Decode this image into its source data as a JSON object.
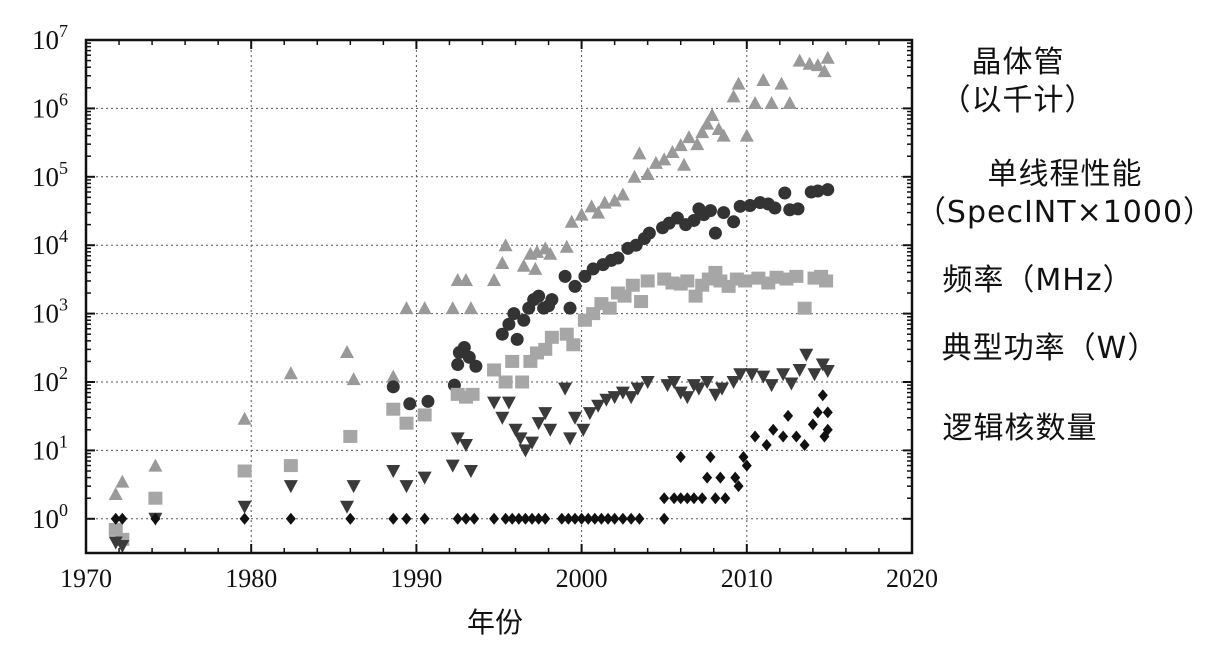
{
  "chart_data": {
    "type": "scatter",
    "title": "",
    "xlabel": "年份",
    "ylabel": "",
    "xlim": [
      1970,
      2020
    ],
    "ylim_log10": [
      -0.5,
      7
    ],
    "yscale": "log",
    "grid": true,
    "x_ticks": [
      "1970",
      "1980",
      "1990",
      "2000",
      "2010",
      "2020"
    ],
    "y_ticks": [
      {
        "base": "10",
        "exp": "0"
      },
      {
        "base": "10",
        "exp": "1"
      },
      {
        "base": "10",
        "exp": "2"
      },
      {
        "base": "10",
        "exp": "3"
      },
      {
        "base": "10",
        "exp": "4"
      },
      {
        "base": "10",
        "exp": "5"
      },
      {
        "base": "10",
        "exp": "6"
      },
      {
        "base": "10",
        "exp": "7"
      }
    ],
    "legend": [
      {
        "lines": [
          "晶体管",
          "（以千计）"
        ]
      },
      {
        "lines": [
          "单线程性能",
          "（SpecINT×1000）"
        ]
      },
      {
        "lines": [
          "频率（MHz）"
        ]
      },
      {
        "lines": [
          "典型功率（W）"
        ]
      },
      {
        "lines": [
          "逻辑核数量"
        ]
      }
    ],
    "series": [
      {
        "name": "晶体管（以千计）",
        "marker": "triangle-up",
        "color": "#999999",
        "points": [
          [
            1971.8,
            2.3
          ],
          [
            1972.2,
            3.5
          ],
          [
            1974.2,
            6
          ],
          [
            1979.6,
            29
          ],
          [
            1982.4,
            134
          ],
          [
            1985.8,
            275
          ],
          [
            1986.2,
            110
          ],
          [
            1988.6,
            120
          ],
          [
            1989.4,
            1200
          ],
          [
            1990.5,
            1200
          ],
          [
            1992.2,
            1200
          ],
          [
            1992.5,
            3100
          ],
          [
            1993,
            3100
          ],
          [
            1993.3,
            1200
          ],
          [
            1994.7,
            3100
          ],
          [
            1995.2,
            5500
          ],
          [
            1995.4,
            10000
          ],
          [
            1996.5,
            5000
          ],
          [
            1996.9,
            7500
          ],
          [
            1997.2,
            4500
          ],
          [
            1997.3,
            8000
          ],
          [
            1997.8,
            9000
          ],
          [
            1998.1,
            7500
          ],
          [
            1999.1,
            9500
          ],
          [
            1999.4,
            22000
          ],
          [
            2000,
            28000
          ],
          [
            2000.6,
            37000
          ],
          [
            2001,
            30000
          ],
          [
            2001.4,
            42000
          ],
          [
            2002,
            45000
          ],
          [
            2002.5,
            55000
          ],
          [
            2003.2,
            100000
          ],
          [
            2003.5,
            220000
          ],
          [
            2004,
            110000
          ],
          [
            2004.5,
            160000
          ],
          [
            2005,
            180000
          ],
          [
            2005.5,
            230000
          ],
          [
            2006,
            290000
          ],
          [
            2006.2,
            150000
          ],
          [
            2006.5,
            380000
          ],
          [
            2007,
            300000
          ],
          [
            2007.3,
            450000
          ],
          [
            2007.6,
            600000
          ],
          [
            2007.9,
            800000
          ],
          [
            2008.3,
            500000
          ],
          [
            2008.6,
            400000
          ],
          [
            2009.2,
            1500000
          ],
          [
            2009.5,
            2300000
          ],
          [
            2010,
            400000
          ],
          [
            2010.5,
            1200000
          ],
          [
            2011,
            2600000
          ],
          [
            2011.5,
            1200000
          ],
          [
            2012.1,
            2300000
          ],
          [
            2012.6,
            1200000
          ],
          [
            2013.2,
            5000000
          ],
          [
            2013.8,
            4500000
          ],
          [
            2014.3,
            4300000
          ],
          [
            2014.7,
            3500000
          ],
          [
            2014.9,
            5500000
          ]
        ]
      },
      {
        "name": "单线程性能（SpecINT×1000）",
        "marker": "circle",
        "color": "#333333",
        "points": [
          [
            1988.6,
            85
          ],
          [
            1989.6,
            48
          ],
          [
            1990.7,
            52
          ],
          [
            1992.3,
            90
          ],
          [
            1992.5,
            180
          ],
          [
            1992.6,
            270
          ],
          [
            1992.9,
            320
          ],
          [
            1993.2,
            230
          ],
          [
            1993.6,
            170
          ],
          [
            1995.2,
            500
          ],
          [
            1995.6,
            700
          ],
          [
            1995.9,
            1000
          ],
          [
            1996.1,
            420
          ],
          [
            1996.5,
            800
          ],
          [
            1996.8,
            1200
          ],
          [
            1997.1,
            1600
          ],
          [
            1997.4,
            1800
          ],
          [
            1997.7,
            1200
          ],
          [
            1998,
            1300
          ],
          [
            1998.2,
            1600
          ],
          [
            1999,
            3500
          ],
          [
            1999.3,
            1200
          ],
          [
            1999.6,
            2500
          ],
          [
            2000.2,
            3500
          ],
          [
            2000.7,
            4500
          ],
          [
            2001.3,
            5200
          ],
          [
            2001.8,
            6000
          ],
          [
            2002.2,
            6500
          ],
          [
            2002.8,
            9000
          ],
          [
            2003.3,
            10000
          ],
          [
            2003.8,
            12500
          ],
          [
            2004.1,
            15000
          ],
          [
            2004.9,
            18000
          ],
          [
            2005.3,
            21000
          ],
          [
            2005.8,
            25000
          ],
          [
            2006.3,
            20000
          ],
          [
            2006.8,
            23000
          ],
          [
            2007.1,
            34000
          ],
          [
            2007.4,
            28000
          ],
          [
            2007.8,
            32000
          ],
          [
            2008.1,
            15000
          ],
          [
            2008.6,
            30000
          ],
          [
            2009.2,
            22000
          ],
          [
            2009.6,
            37000
          ],
          [
            2010.2,
            38000
          ],
          [
            2010.8,
            42000
          ],
          [
            2011.3,
            40000
          ],
          [
            2011.7,
            35000
          ],
          [
            2012.3,
            58000
          ],
          [
            2012.6,
            33000
          ],
          [
            2013.1,
            34000
          ],
          [
            2013.9,
            60000
          ],
          [
            2014.3,
            62000
          ],
          [
            2014.9,
            65000
          ]
        ]
      },
      {
        "name": "频率（MHz）",
        "marker": "square",
        "color": "#a6a6a6",
        "points": [
          [
            1971.8,
            0.7
          ],
          [
            1972.2,
            0.5
          ],
          [
            1974.2,
            2
          ],
          [
            1979.6,
            5
          ],
          [
            1982.4,
            6
          ],
          [
            1986,
            16
          ],
          [
            1988.6,
            40
          ],
          [
            1989.4,
            25
          ],
          [
            1990.5,
            33
          ],
          [
            1992.5,
            66
          ],
          [
            1993,
            60
          ],
          [
            1993.4,
            66
          ],
          [
            1994.7,
            150
          ],
          [
            1995.4,
            100
          ],
          [
            1995.8,
            200
          ],
          [
            1996.4,
            100
          ],
          [
            1996.9,
            200
          ],
          [
            1997.3,
            266
          ],
          [
            1997.8,
            300
          ],
          [
            1998.2,
            450
          ],
          [
            1999.1,
            500
          ],
          [
            1999.5,
            350
          ],
          [
            2000.2,
            800
          ],
          [
            2000.7,
            1000
          ],
          [
            2001.2,
            1400
          ],
          [
            2001.7,
            1200
          ],
          [
            2002.2,
            2000
          ],
          [
            2002.6,
            1800
          ],
          [
            2003.1,
            2600
          ],
          [
            2003.6,
            1500
          ],
          [
            2004,
            3000
          ],
          [
            2005,
            3200
          ],
          [
            2005.5,
            2800
          ],
          [
            2006,
            2700
          ],
          [
            2006.4,
            3000
          ],
          [
            2006.9,
            1800
          ],
          [
            2007.3,
            2600
          ],
          [
            2007.7,
            3200
          ],
          [
            2008.1,
            4000
          ],
          [
            2008.4,
            3000
          ],
          [
            2008.9,
            2500
          ],
          [
            2009.4,
            3200
          ],
          [
            2009.9,
            3000
          ],
          [
            2010.7,
            3300
          ],
          [
            2011.3,
            2800
          ],
          [
            2011.8,
            3400
          ],
          [
            2012.4,
            3200
          ],
          [
            2013,
            3500
          ],
          [
            2013.5,
            1200
          ],
          [
            2014.1,
            3300
          ],
          [
            2014.5,
            3500
          ],
          [
            2014.8,
            3000
          ]
        ]
      },
      {
        "name": "典型功率（W）",
        "marker": "triangle-down",
        "color": "#3a3a3a",
        "points": [
          [
            1971.8,
            0.45
          ],
          [
            1972.2,
            0.4
          ],
          [
            1974.2,
            1
          ],
          [
            1979.6,
            1.5
          ],
          [
            1982.4,
            3
          ],
          [
            1985.8,
            1.5
          ],
          [
            1986.2,
            3
          ],
          [
            1988.6,
            5
          ],
          [
            1989.4,
            3
          ],
          [
            1990.5,
            4
          ],
          [
            1992.2,
            6
          ],
          [
            1992.5,
            15
          ],
          [
            1993,
            12
          ],
          [
            1993.3,
            5
          ],
          [
            1994.7,
            50
          ],
          [
            1995.2,
            30
          ],
          [
            1995.6,
            50
          ],
          [
            1996,
            20
          ],
          [
            1996.3,
            15
          ],
          [
            1996.6,
            10
          ],
          [
            1997,
            13
          ],
          [
            1997.4,
            25
          ],
          [
            1997.8,
            35
          ],
          [
            1998.1,
            20
          ],
          [
            1999,
            80
          ],
          [
            1999.3,
            15
          ],
          [
            1999.6,
            30
          ],
          [
            2000.1,
            20
          ],
          [
            2000.5,
            35
          ],
          [
            2001,
            45
          ],
          [
            2001.5,
            55
          ],
          [
            2002,
            60
          ],
          [
            2002.5,
            70
          ],
          [
            2003,
            60
          ],
          [
            2003.4,
            80
          ],
          [
            2004,
            100
          ],
          [
            2005.2,
            90
          ],
          [
            2005.6,
            100
          ],
          [
            2006,
            70
          ],
          [
            2006.4,
            60
          ],
          [
            2006.8,
            90
          ],
          [
            2007.1,
            80
          ],
          [
            2007.6,
            100
          ],
          [
            2008.1,
            65
          ],
          [
            2008.5,
            80
          ],
          [
            2009.2,
            100
          ],
          [
            2009.6,
            130
          ],
          [
            2010.3,
            130
          ],
          [
            2011,
            120
          ],
          [
            2011.5,
            90
          ],
          [
            2012.2,
            130
          ],
          [
            2012.7,
            95
          ],
          [
            2013.2,
            150
          ],
          [
            2013.6,
            250
          ],
          [
            2014.1,
            130
          ],
          [
            2014.6,
            180
          ],
          [
            2014.9,
            145
          ]
        ]
      },
      {
        "name": "逻辑核数量",
        "marker": "diamond",
        "color": "#111111",
        "points": [
          [
            1971.8,
            1
          ],
          [
            1972.2,
            1
          ],
          [
            1974.2,
            1
          ],
          [
            1979.6,
            1
          ],
          [
            1982.4,
            1
          ],
          [
            1986,
            1
          ],
          [
            1988.6,
            1
          ],
          [
            1989.4,
            1
          ],
          [
            1990.5,
            1
          ],
          [
            1992.5,
            1
          ],
          [
            1993,
            1
          ],
          [
            1993.5,
            1
          ],
          [
            1994.7,
            1
          ],
          [
            1995.4,
            1
          ],
          [
            1995.8,
            1
          ],
          [
            1996.2,
            1
          ],
          [
            1996.6,
            1
          ],
          [
            1997,
            1
          ],
          [
            1997.4,
            1
          ],
          [
            1997.8,
            1
          ],
          [
            1998.8,
            1
          ],
          [
            1999.2,
            1
          ],
          [
            1999.6,
            1
          ],
          [
            2000,
            1
          ],
          [
            2000.4,
            1
          ],
          [
            2000.8,
            1
          ],
          [
            2001.2,
            1
          ],
          [
            2001.6,
            1
          ],
          [
            2002,
            1
          ],
          [
            2002.5,
            1
          ],
          [
            2003,
            1
          ],
          [
            2003.5,
            1
          ],
          [
            2005,
            2
          ],
          [
            2005,
            1
          ],
          [
            2005.6,
            2
          ],
          [
            2006,
            2
          ],
          [
            2006.4,
            2
          ],
          [
            2006.8,
            2
          ],
          [
            2006,
            8
          ],
          [
            2007.3,
            2
          ],
          [
            2007.6,
            4
          ],
          [
            2007.8,
            8
          ],
          [
            2008.1,
            2
          ],
          [
            2008.4,
            4
          ],
          [
            2008.7,
            2
          ],
          [
            2009.3,
            4
          ],
          [
            2009.5,
            3
          ],
          [
            2009.8,
            8
          ],
          [
            2010,
            6
          ],
          [
            2010.5,
            16
          ],
          [
            2011.2,
            12
          ],
          [
            2011.6,
            20
          ],
          [
            2012.2,
            16
          ],
          [
            2012.5,
            32
          ],
          [
            2013,
            16
          ],
          [
            2013.5,
            12
          ],
          [
            2014,
            24
          ],
          [
            2014.3,
            36
          ],
          [
            2014.6,
            64
          ],
          [
            2014.9,
            20
          ],
          [
            2014.7,
            16
          ],
          [
            2014.9,
            36
          ]
        ]
      }
    ]
  }
}
